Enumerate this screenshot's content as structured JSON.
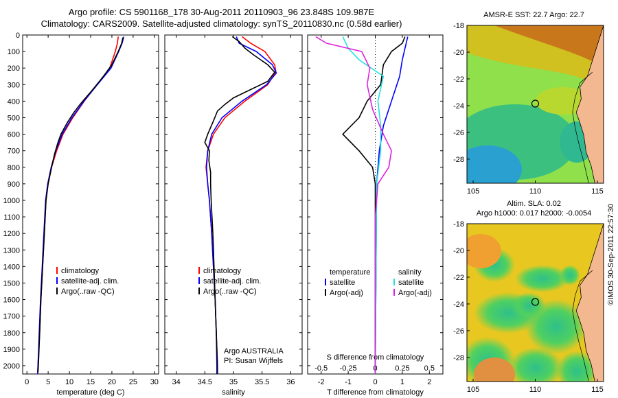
{
  "header": {
    "line1": "Argo profile: CS 5901168_178 30-Aug-2011 20110903_96 23.848S 109.987E",
    "line2": "Climatology: CARS2009. Satellite-adjusted climatology: synTS_20110830.nc (0.58d earlier)"
  },
  "credit": "©IMOS 30-Sep-2011 22:57:30",
  "colors": {
    "climatology": "#ff0000",
    "satellite": "#0000ff",
    "argo": "#000000",
    "salinity_sat": "#22e0e0",
    "salinity_argo": "#e020e0"
  },
  "chart_data": [
    {
      "type": "line",
      "id": "temperature",
      "xlabel": "temperature (deg C)",
      "ylabel": "",
      "xlim": [
        -1,
        31
      ],
      "ylim": [
        2050,
        0
      ],
      "xticks": [
        "0",
        "5",
        "10",
        "15",
        "20",
        "25",
        "30"
      ],
      "yticks": [
        "0",
        "100",
        "200",
        "300",
        "400",
        "500",
        "600",
        "700",
        "800",
        "900",
        "1000",
        "1100",
        "1200",
        "1300",
        "1400",
        "1500",
        "1600",
        "1700",
        "1800",
        "1900",
        "2000"
      ],
      "legend": [
        "climatology",
        "satellite-adj. clim.",
        "Argo(..raw -QC)"
      ],
      "series": [
        {
          "name": "climatology",
          "color": "#ff0000",
          "points": [
            [
              21.5,
              10
            ],
            [
              21.3,
              50
            ],
            [
              20.8,
              100
            ],
            [
              19.5,
              200
            ],
            [
              16.5,
              300
            ],
            [
              13.5,
              400
            ],
            [
              10.8,
              500
            ],
            [
              8.5,
              600
            ],
            [
              7.0,
              700
            ],
            [
              5.8,
              800
            ],
            [
              5.0,
              900
            ],
            [
              4.5,
              1000
            ],
            [
              4.1,
              1200
            ],
            [
              3.7,
              1400
            ],
            [
              3.3,
              1600
            ],
            [
              3.0,
              1800
            ],
            [
              2.6,
              2000
            ],
            [
              2.5,
              2050
            ]
          ]
        },
        {
          "name": "satellite-adj. clim.",
          "color": "#0000ff",
          "points": [
            [
              22.8,
              10
            ],
            [
              22.4,
              50
            ],
            [
              21.6,
              100
            ],
            [
              19.8,
              200
            ],
            [
              16.6,
              300
            ],
            [
              13.4,
              400
            ],
            [
              10.6,
              500
            ],
            [
              8.3,
              600
            ],
            [
              6.8,
              700
            ],
            [
              5.7,
              800
            ],
            [
              4.9,
              900
            ],
            [
              4.4,
              1000
            ],
            [
              4.0,
              1200
            ],
            [
              3.6,
              1400
            ],
            [
              3.2,
              1600
            ],
            [
              2.9,
              1800
            ],
            [
              2.6,
              2000
            ],
            [
              2.5,
              2050
            ]
          ]
        },
        {
          "name": "Argo(..raw -QC)",
          "color": "#000000",
          "points": [
            [
              22.6,
              15
            ],
            [
              22.3,
              50
            ],
            [
              21.5,
              100
            ],
            [
              20.0,
              180
            ],
            [
              18.0,
              250
            ],
            [
              15.5,
              330
            ],
            [
              12.5,
              420
            ],
            [
              11.0,
              470
            ],
            [
              9.5,
              530
            ],
            [
              8.0,
              600
            ],
            [
              7.3,
              650
            ],
            [
              6.5,
              720
            ],
            [
              5.8,
              800
            ],
            [
              5.0,
              900
            ],
            [
              4.5,
              1000
            ],
            [
              4.1,
              1200
            ],
            [
              3.7,
              1400
            ],
            [
              3.3,
              1600
            ],
            [
              3.0,
              1800
            ],
            [
              2.7,
              2000
            ],
            [
              2.6,
              2040
            ]
          ]
        }
      ]
    },
    {
      "type": "line",
      "id": "salinity",
      "xlabel": "salinity",
      "xlim": [
        33.8,
        36.2
      ],
      "ylim": [
        2050,
        0
      ],
      "xticks": [
        "34",
        "34.5",
        "35",
        "35.5",
        "36"
      ],
      "legend": [
        "climatology",
        "satellite-adj. clim.",
        "Argo(..raw -QC)"
      ],
      "annotation": [
        "Argo AUSTRALIA",
        "PI: Susan Wijffels"
      ],
      "series": [
        {
          "name": "climatology",
          "color": "#ff0000",
          "points": [
            [
              35.15,
              10
            ],
            [
              35.3,
              50
            ],
            [
              35.55,
              100
            ],
            [
              35.72,
              180
            ],
            [
              35.74,
              220
            ],
            [
              35.6,
              300
            ],
            [
              35.2,
              400
            ],
            [
              34.85,
              500
            ],
            [
              34.65,
              600
            ],
            [
              34.55,
              700
            ],
            [
              34.52,
              800
            ],
            [
              34.55,
              900
            ],
            [
              34.58,
              1000
            ],
            [
              34.62,
              1200
            ],
            [
              34.65,
              1400
            ],
            [
              34.68,
              1600
            ],
            [
              34.7,
              1800
            ],
            [
              34.72,
              2000
            ],
            [
              34.72,
              2050
            ]
          ]
        },
        {
          "name": "satellite-adj. clim.",
          "color": "#0000ff",
          "points": [
            [
              35.05,
              10
            ],
            [
              35.1,
              50
            ],
            [
              35.4,
              100
            ],
            [
              35.68,
              180
            ],
            [
              35.75,
              230
            ],
            [
              35.58,
              300
            ],
            [
              35.15,
              400
            ],
            [
              34.8,
              500
            ],
            [
              34.62,
              600
            ],
            [
              34.55,
              700
            ],
            [
              34.53,
              800
            ],
            [
              34.55,
              900
            ],
            [
              34.58,
              1000
            ],
            [
              34.62,
              1200
            ],
            [
              34.65,
              1400
            ],
            [
              34.68,
              1600
            ],
            [
              34.7,
              1800
            ],
            [
              34.71,
              2000
            ],
            [
              34.71,
              2050
            ]
          ]
        },
        {
          "name": "Argo(..raw -QC)",
          "color": "#000000",
          "points": [
            [
              34.98,
              10
            ],
            [
              35.1,
              40
            ],
            [
              35.2,
              80
            ],
            [
              35.35,
              120
            ],
            [
              35.6,
              180
            ],
            [
              35.72,
              225
            ],
            [
              35.6,
              280
            ],
            [
              35.3,
              330
            ],
            [
              35.0,
              380
            ],
            [
              34.85,
              420
            ],
            [
              34.72,
              460
            ],
            [
              34.65,
              520
            ],
            [
              34.55,
              600
            ],
            [
              34.5,
              650
            ],
            [
              34.58,
              700
            ],
            [
              34.57,
              760
            ],
            [
              34.6,
              830
            ],
            [
              34.6,
              900
            ],
            [
              34.61,
              1000
            ],
            [
              34.64,
              1200
            ],
            [
              34.66,
              1400
            ],
            [
              34.68,
              1600
            ],
            [
              34.7,
              1800
            ],
            [
              34.72,
              2000
            ],
            [
              34.72,
              2050
            ]
          ]
        }
      ]
    },
    {
      "type": "line",
      "id": "difference",
      "xlabel": "T difference from climatology",
      "x2label": "S difference from climatology",
      "xlim": [
        -2.5,
        2.5
      ],
      "ylim": [
        2050,
        0
      ],
      "xticks": [
        "-2",
        "-1",
        "0",
        "1",
        "2"
      ],
      "x2ticks": [
        "-0.5",
        "-0.25",
        "0",
        "0.25",
        "0.5"
      ],
      "legend_temperature": [
        "temperature",
        "satellite",
        "Argo(-adj)"
      ],
      "legend_salinity": [
        "salinity",
        "satellite",
        "Argo(-adj)"
      ],
      "series": [
        {
          "name": "temperature satellite",
          "color": "#0000ff",
          "points": [
            [
              1.2,
              10
            ],
            [
              1.1,
              80
            ],
            [
              1.0,
              150
            ],
            [
              0.9,
              250
            ],
            [
              0.6,
              400
            ],
            [
              0.3,
              550
            ],
            [
              0.15,
              700
            ],
            [
              0.05,
              900
            ],
            [
              0.0,
              2050
            ]
          ]
        },
        {
          "name": "temperature Argo(-adj)",
          "color": "#000000",
          "points": [
            [
              1.1,
              10
            ],
            [
              1.0,
              50
            ],
            [
              0.6,
              100
            ],
            [
              0.3,
              180
            ],
            [
              0.2,
              300
            ],
            [
              -0.3,
              400
            ],
            [
              -0.6,
              500
            ],
            [
              -1.2,
              600
            ],
            [
              -0.6,
              700
            ],
            [
              -0.1,
              800
            ],
            [
              0.0,
              900
            ],
            [
              0.0,
              2050
            ]
          ]
        },
        {
          "name": "salinity satellite",
          "color": "#22e0e0",
          "points": [
            [
              -1.2,
              10
            ],
            [
              -1.0,
              80
            ],
            [
              -0.6,
              150
            ],
            [
              0.3,
              250
            ],
            [
              0.1,
              400
            ],
            [
              0.2,
              550
            ],
            [
              0.2,
              700
            ],
            [
              0.05,
              900
            ],
            [
              0.0,
              2050
            ]
          ]
        },
        {
          "name": "salinity Argo(-adj)",
          "color": "#e020e0",
          "points": [
            [
              -2.2,
              10
            ],
            [
              -1.8,
              50
            ],
            [
              -0.5,
              100
            ],
            [
              -0.2,
              200
            ],
            [
              -0.3,
              300
            ],
            [
              -0.1,
              450
            ],
            [
              0.3,
              600
            ],
            [
              0.6,
              700
            ],
            [
              0.5,
              800
            ],
            [
              0.1,
              900
            ],
            [
              0.0,
              1100
            ],
            [
              0.0,
              2050
            ]
          ]
        }
      ]
    },
    {
      "type": "heatmap",
      "id": "sst-map",
      "title": "AMSR-E SST: 22.7 Argo: 22.7",
      "xlim": [
        104.5,
        115.5
      ],
      "ylim": [
        -29.8,
        -18
      ],
      "xticks": [
        "105",
        "110",
        "115"
      ],
      "yticks": [
        "-18",
        "-20",
        "-22",
        "-24",
        "-26",
        "-28"
      ],
      "marker": [
        110,
        -23.85
      ]
    },
    {
      "type": "heatmap",
      "id": "sla-map",
      "title": "Altim. SLA: 0.02",
      "subtitle": "Argo h1000: 0.017 h2000: -0.0054",
      "xlim": [
        104.5,
        115.5
      ],
      "ylim": [
        -29.8,
        -18
      ],
      "xticks": [
        "105",
        "110",
        "115"
      ],
      "yticks": [
        "-18",
        "-20",
        "-22",
        "-24",
        "-26",
        "-28"
      ],
      "marker": [
        110,
        -23.85
      ]
    }
  ]
}
